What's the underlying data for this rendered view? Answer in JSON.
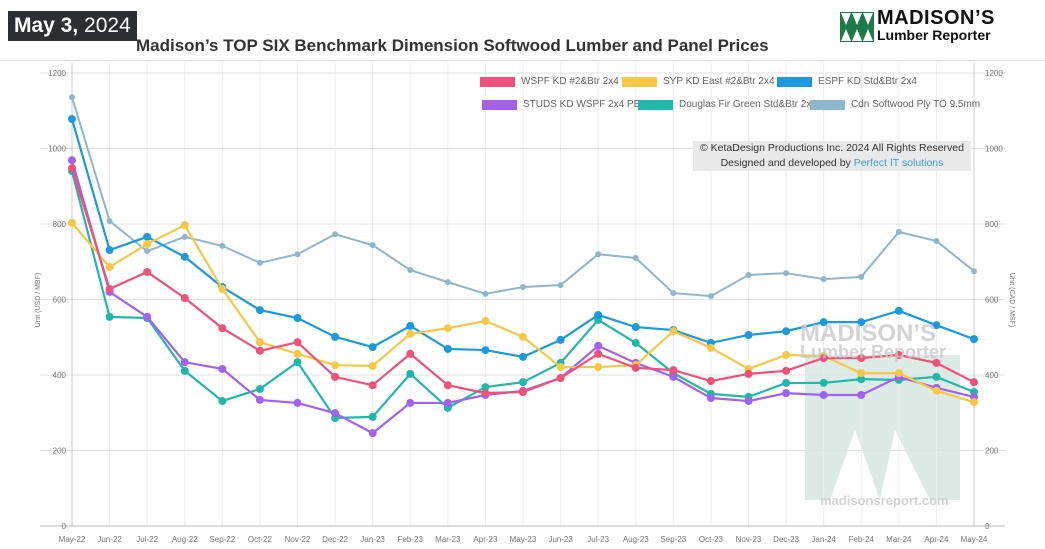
{
  "header": {
    "date_bold": "May 3,",
    "date_year": "2024",
    "title": "Madison’s TOP SIX Benchmark Dimension Softwood Lumber and Panel Prices"
  },
  "logo": {
    "line1": "MADISON’S",
    "line2": "Lumber Reporter"
  },
  "credit": {
    "line1": "© KetaDesign Productions Inc. 2024 All Rights Reserved",
    "line2_prefix": "Designed and developed by ",
    "line2_link": "Perfect IT solutions"
  },
  "watermark": {
    "line1": "MADISON’S",
    "line2": "Lumber Reporter",
    "url": "madisonsreport.com"
  },
  "chart_data": {
    "type": "line",
    "title": "Madison’s TOP SIX Benchmark Dimension Softwood Lumber and Panel Prices",
    "ylabel": "Unit (USD / MBF)",
    "ylabel_right": "Unit (CAD / MSF)",
    "ylim": [
      0,
      1200
    ],
    "yticks": [
      0,
      200,
      400,
      600,
      800,
      1000,
      1200
    ],
    "grid": true,
    "legend": "top-right",
    "categories": [
      "May-22",
      "Jun-22",
      "Jul-22",
      "Aug-22",
      "Sep-22",
      "Oct-22",
      "Nov-22",
      "Dec-22",
      "Jan-23",
      "Feb-23",
      "Mar-23",
      "Apr-23",
      "May-23",
      "Jun-23",
      "Jul-23",
      "Aug-23",
      "Sep-23",
      "Oct-23",
      "Nov-23",
      "Dec-23",
      "Jan-24",
      "Feb-24",
      "Mar-24",
      "Apr-24",
      "May-24"
    ],
    "series": [
      {
        "name": "WSPF KD #2&Btr 2x4",
        "color": "#f0507a",
        "values": [
          948,
          628,
          673,
          604,
          524,
          464,
          487,
          395,
          373,
          456,
          373,
          352,
          355,
          392,
          456,
          419,
          413,
          384,
          403,
          411,
          445,
          445,
          453,
          432,
          381
        ]
      },
      {
        "name": "SYP KD East #2&Btr 2x4",
        "color": "#f7c843",
        "values": [
          803,
          686,
          747,
          797,
          628,
          487,
          456,
          426,
          424,
          509,
          524,
          543,
          501,
          421,
          421,
          426,
          516,
          472,
          416,
          453,
          450,
          405,
          405,
          358,
          328
        ]
      },
      {
        "name": "ESPF KD Std&Btr 2x4",
        "color": "#1a9be0",
        "values": [
          1078,
          731,
          766,
          713,
          633,
          572,
          551,
          501,
          474,
          530,
          469,
          466,
          448,
          493,
          559,
          527,
          519,
          485,
          506,
          516,
          540,
          540,
          570,
          532,
          495
        ]
      },
      {
        "name": "STUDS KD WSPF 2x4 PET",
        "color": "#a261f2",
        "values": [
          969,
          620,
          554,
          434,
          416,
          334,
          326,
          299,
          246,
          326,
          326,
          347,
          358,
          392,
          477,
          432,
          395,
          339,
          331,
          352,
          347,
          347,
          395,
          366,
          342
        ]
      },
      {
        "name": "Douglas Fir Green Std&Btr 2x4",
        "color": "#1fb9a9",
        "values": [
          940,
          554,
          551,
          411,
          331,
          363,
          434,
          286,
          289,
          403,
          313,
          368,
          381,
          432,
          546,
          485,
          405,
          350,
          342,
          379,
          379,
          389,
          387,
          395,
          355
        ]
      },
      {
        "name": "Cdn Softwood Ply TO 9.5mm",
        "color": "#8fb6cb",
        "values": [
          1136,
          808,
          728,
          766,
          742,
          697,
          720,
          773,
          744,
          678,
          646,
          615,
          633,
          638,
          720,
          710,
          617,
          609,
          665,
          670,
          654,
          660,
          779,
          755,
          675
        ]
      }
    ]
  }
}
